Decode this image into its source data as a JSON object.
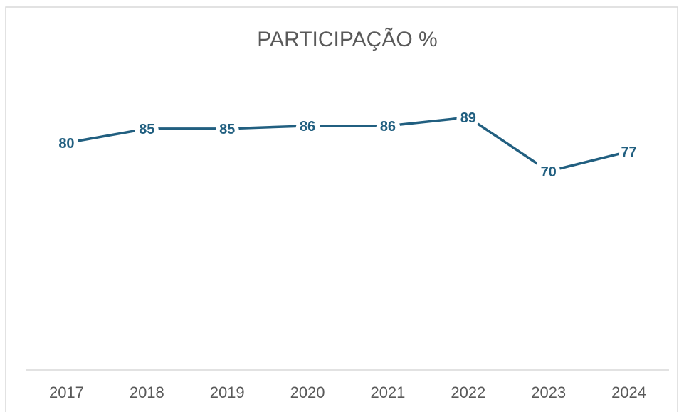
{
  "chart_data": {
    "type": "line",
    "title": "PARTICIPAÇÃO %",
    "categories": [
      "2017",
      "2018",
      "2019",
      "2020",
      "2021",
      "2022",
      "2023",
      "2024"
    ],
    "series": [
      {
        "name": "Participação",
        "color": "#215f80",
        "values": [
          80,
          85,
          85,
          86,
          86,
          89,
          70,
          77
        ]
      }
    ],
    "ylim": [
      0,
      100
    ]
  }
}
